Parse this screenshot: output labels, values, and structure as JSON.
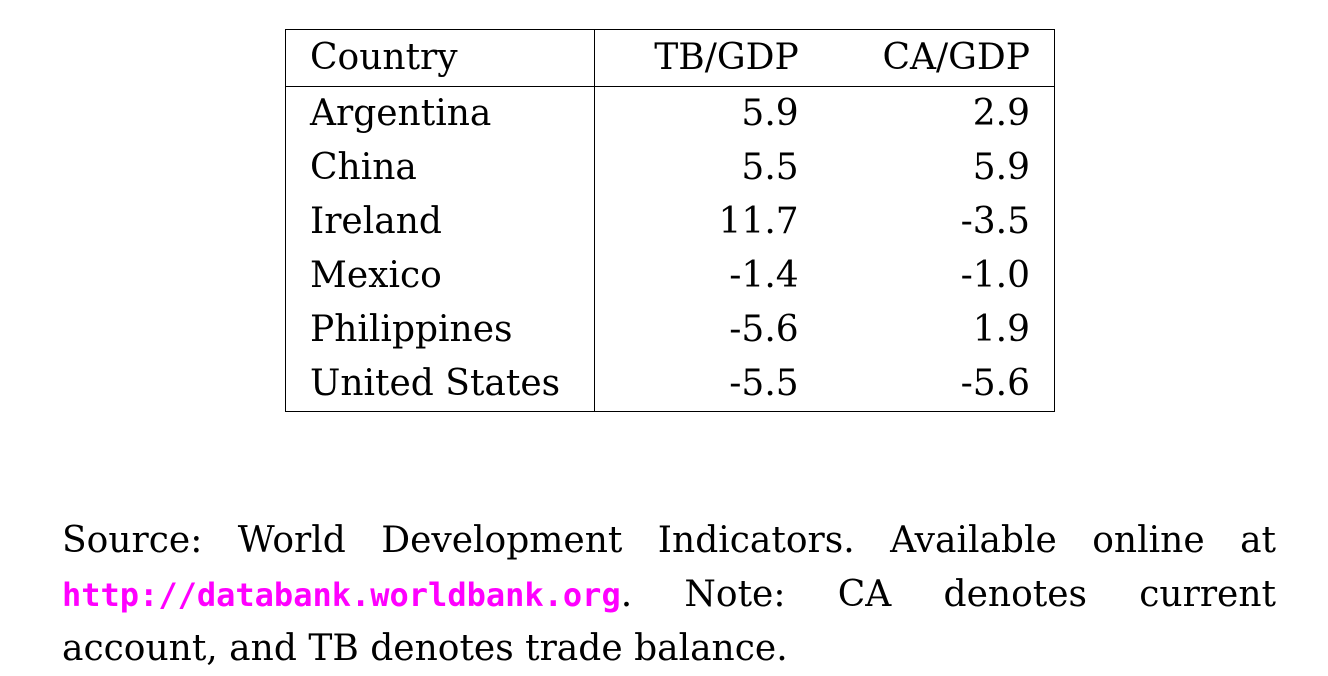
{
  "table": {
    "headers": [
      "Country",
      "TB/GDP",
      "CA/GDP"
    ],
    "rows": [
      {
        "country": "Argentina",
        "tb": "5.9",
        "ca": "2.9"
      },
      {
        "country": "China",
        "tb": "5.5",
        "ca": "5.9"
      },
      {
        "country": "Ireland",
        "tb": "11.7",
        "ca": "-3.5"
      },
      {
        "country": "Mexico",
        "tb": "-1.4",
        "ca": "-1.0"
      },
      {
        "country": "Philippines",
        "tb": "-5.6",
        "ca": "1.9"
      },
      {
        "country": "United States",
        "tb": "-5.5",
        "ca": "-5.6"
      }
    ]
  },
  "note": {
    "prefix": "Source:  World Development Indicators.  Available online at ",
    "link": "http://databank.worldbank.org",
    "suffix": ". Note:  CA denotes current account, and TB denotes trade balance.",
    "link_color": "#ff00ff"
  }
}
